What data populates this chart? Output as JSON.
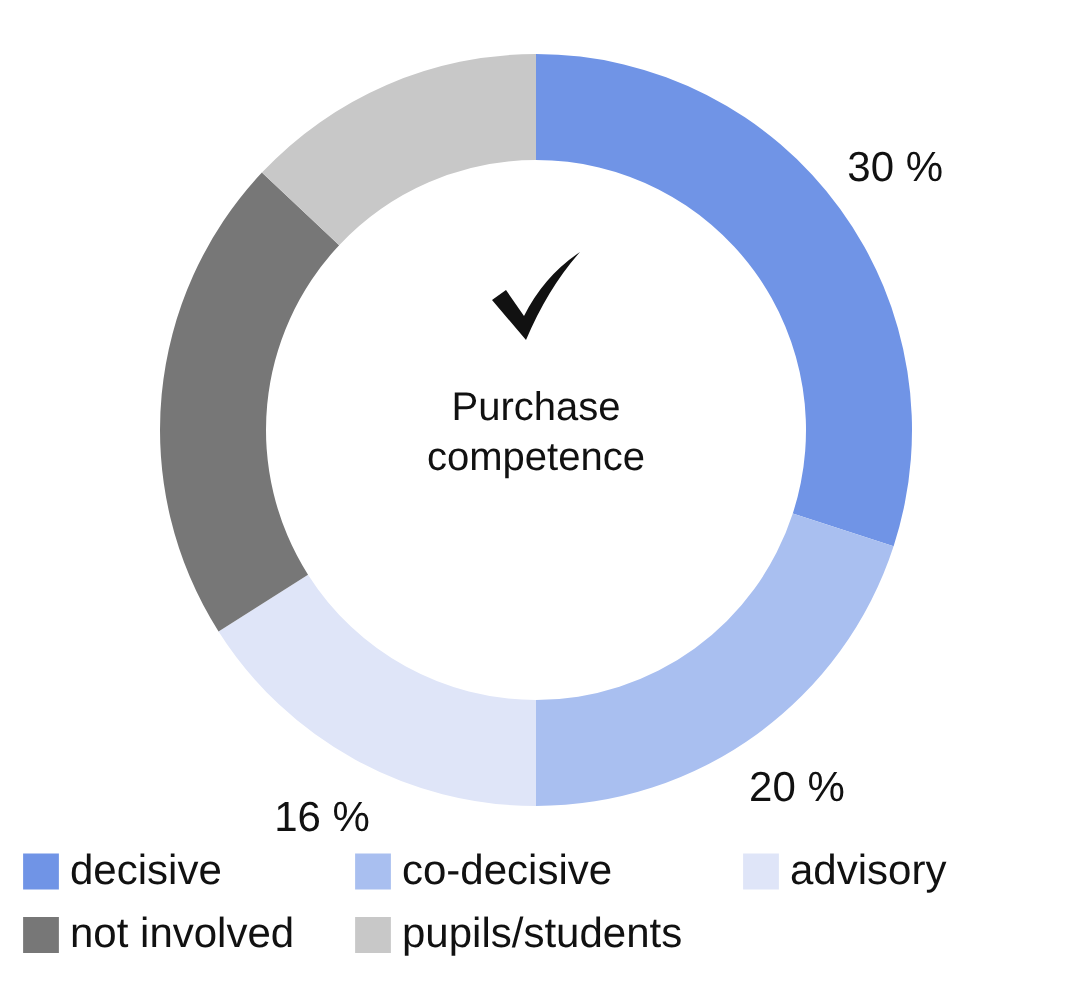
{
  "chart_data": {
    "type": "donut",
    "categories": [
      "decisive",
      "co-decisive",
      "advisory",
      "not involved",
      "pupils/students"
    ],
    "values": [
      30,
      20,
      16,
      21,
      13
    ],
    "colors": [
      "#7094e6",
      "#a9bff0",
      "#dfe5f8",
      "#777777",
      "#c8c8c8"
    ],
    "value_labels": [
      "30 %",
      "20 %",
      "16 %",
      null,
      null
    ],
    "annotations": [
      "Purchase competence"
    ],
    "legend": "bottom"
  }
}
